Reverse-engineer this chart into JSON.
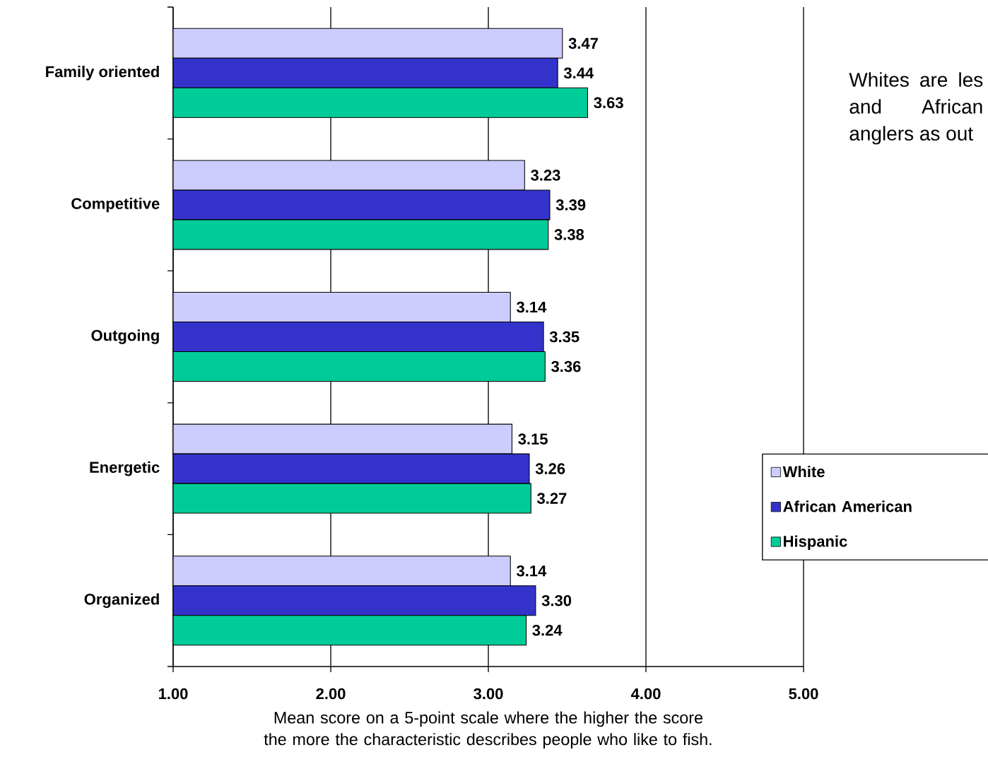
{
  "chart_data": {
    "type": "bar",
    "orientation": "horizontal",
    "categories": [
      "Family oriented",
      "Competitive",
      "Outgoing",
      "Energetic",
      "Organized"
    ],
    "series": [
      {
        "name": "White",
        "color": "#ccccff",
        "values": [
          3.47,
          3.23,
          3.14,
          3.15,
          3.14
        ],
        "value_labels": [
          "3.47",
          "3.23",
          "3.14",
          "3.15",
          "3.14"
        ]
      },
      {
        "name": "African American",
        "color": "#3333cc",
        "values": [
          3.44,
          3.39,
          3.35,
          3.26,
          3.3
        ],
        "value_labels": [
          "3.44",
          "3.39",
          "3.35",
          "3.26",
          "3.30"
        ]
      },
      {
        "name": "Hispanic",
        "color": "#00cc99",
        "values": [
          3.63,
          3.38,
          3.36,
          3.27,
          3.24
        ],
        "value_labels": [
          "3.63",
          "3.38",
          "3.36",
          "3.27",
          "3.24"
        ]
      }
    ],
    "xlim": [
      1,
      5
    ],
    "xticks": [
      {
        "value": 1,
        "label": "1.00"
      },
      {
        "value": 2,
        "label": "2.00"
      },
      {
        "value": 3,
        "label": "3.00"
      },
      {
        "value": 4,
        "label": "4.00"
      },
      {
        "value": 5,
        "label": "5.00"
      }
    ],
    "xlabel": "Mean score on a 5-point scale where the higher the score the more the characteristic describes people who like to fish.",
    "grid": "x",
    "legend": "right",
    "annotations": [
      "Whites are les and African anglers as out"
    ]
  }
}
